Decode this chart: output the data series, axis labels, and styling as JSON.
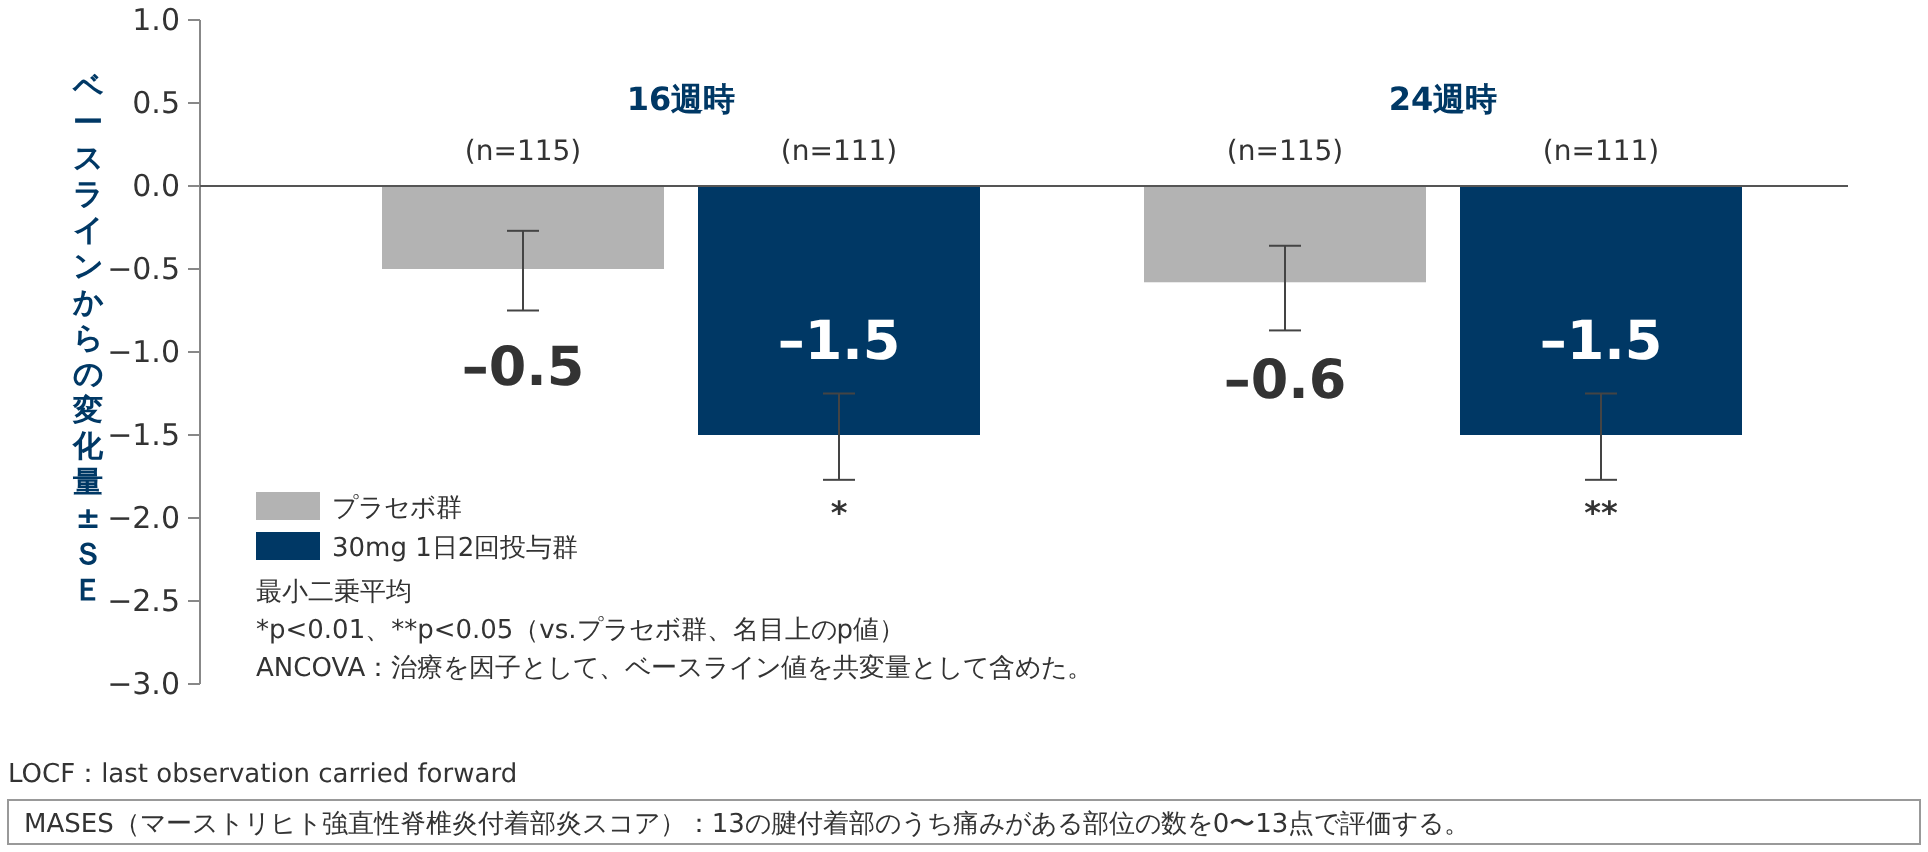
{
  "chart_data": {
    "type": "bar",
    "ylabel": "ベースラインからの変化量±ＳＥ",
    "categories": [
      "16週時",
      "24週時"
    ],
    "series": [
      {
        "name": "プラセボ群",
        "color": "#b3b3b3",
        "values": [
          -0.5,
          -0.58
        ],
        "value_labels": [
          "–0.5",
          "–0.6"
        ],
        "errors": [
          [
            -0.75,
            -0.27
          ],
          [
            -0.87,
            -0.36
          ]
        ]
      },
      {
        "name": "30mg 1日2回投与群",
        "color": "#003865",
        "values": [
          -1.5,
          -1.5
        ],
        "value_labels": [
          "–1.5",
          "–1.5"
        ],
        "errors": [
          [
            -1.77,
            -1.25
          ],
          [
            -1.77,
            -1.25
          ]
        ]
      }
    ],
    "ylim": [
      -3.0,
      1.0
    ],
    "yticks": [
      {
        "value": -3.0,
        "label": "−3.0"
      },
      {
        "value": -2.5,
        "label": "−2.5"
      },
      {
        "value": -2.0,
        "label": "−2.0"
      },
      {
        "value": -1.5,
        "label": "−1.5"
      },
      {
        "value": -1.0,
        "label": "−1.0"
      },
      {
        "value": -0.5,
        "label": "−0.5"
      },
      {
        "value": 0,
        "label": "0.0"
      },
      {
        "value": 0.5,
        "label": "0.5"
      },
      {
        "value": 1.0,
        "label": "1.0"
      }
    ],
    "legend": "bottom left",
    "annotations": [
      "(n=115)",
      "(n=111)",
      "(n=115)",
      "(n=111)",
      "*",
      "**",
      "最小二乗平均",
      "*p<0.01、**p<0.05（vs.プラセボ群、名目上のp値）",
      "ANCOVA：治療を因子として、ベースライン値を共変量として含めた。",
      "LOCF：last observation carried forward",
      "MASES（マーストリヒト強直性脊椎炎付着部炎スコア）：13の腱付着部のうち痛みがある部位の数を0〜13点で評価する。"
    ]
  }
}
